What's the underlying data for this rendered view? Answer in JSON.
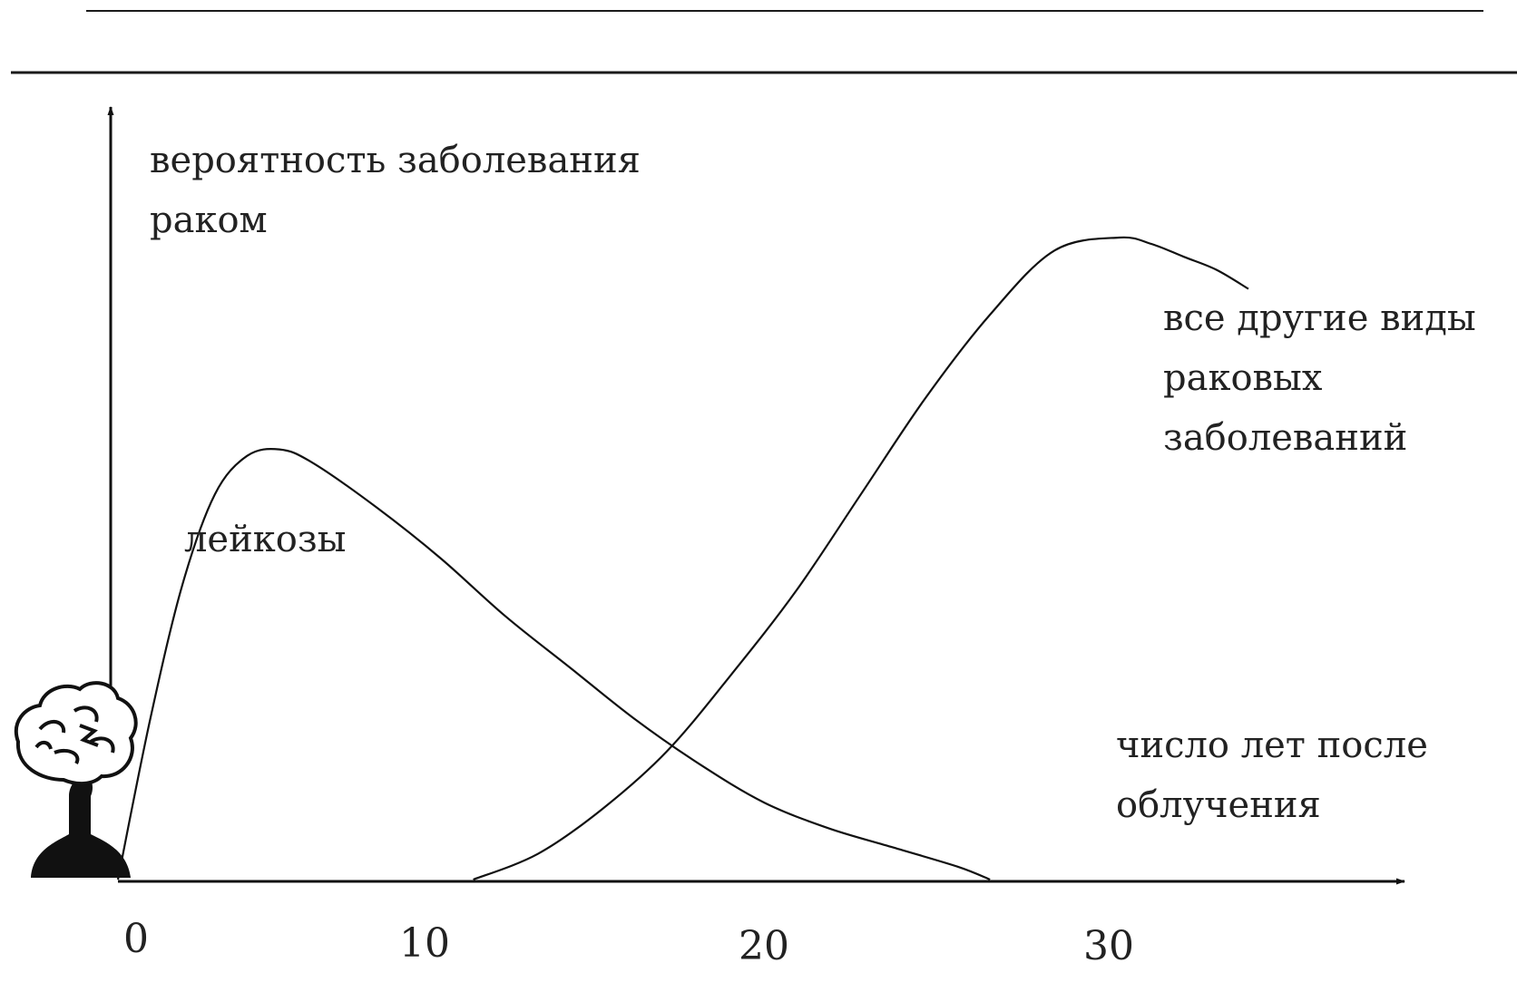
{
  "chart_data": {
    "type": "line",
    "title": "",
    "ylabel_lines": [
      "вероятность заболевания",
      "раком"
    ],
    "xlabel_lines": [
      "число лет после",
      "облучения"
    ],
    "xticks": [
      "0",
      "10",
      "20",
      "30"
    ],
    "xlim": [
      0,
      37
    ],
    "ylim": [
      0,
      1
    ],
    "grid": false,
    "legend": "none",
    "series": [
      {
        "name": "лейкозы",
        "x": [
          0,
          1,
          2,
          3,
          4,
          5,
          6,
          8,
          10,
          12,
          14,
          16,
          18,
          20,
          22,
          24,
          26,
          27
        ],
        "y": [
          0,
          0.25,
          0.46,
          0.6,
          0.66,
          0.67,
          0.65,
          0.58,
          0.5,
          0.41,
          0.33,
          0.25,
          0.18,
          0.12,
          0.08,
          0.05,
          0.02,
          0
        ]
      },
      {
        "name": "все другие виды раковых заболеваний",
        "name_lines": [
          "все другие виды",
          "раковых",
          "заболеваний"
        ],
        "x": [
          11,
          13,
          15,
          17,
          19,
          21,
          23,
          25,
          27,
          29,
          31,
          32,
          33,
          34,
          35
        ],
        "y": [
          0,
          0.04,
          0.11,
          0.2,
          0.32,
          0.45,
          0.6,
          0.75,
          0.88,
          0.98,
          1.0,
          0.99,
          0.97,
          0.95,
          0.92
        ]
      }
    ]
  },
  "icon": "nuclear-explosion-icon"
}
